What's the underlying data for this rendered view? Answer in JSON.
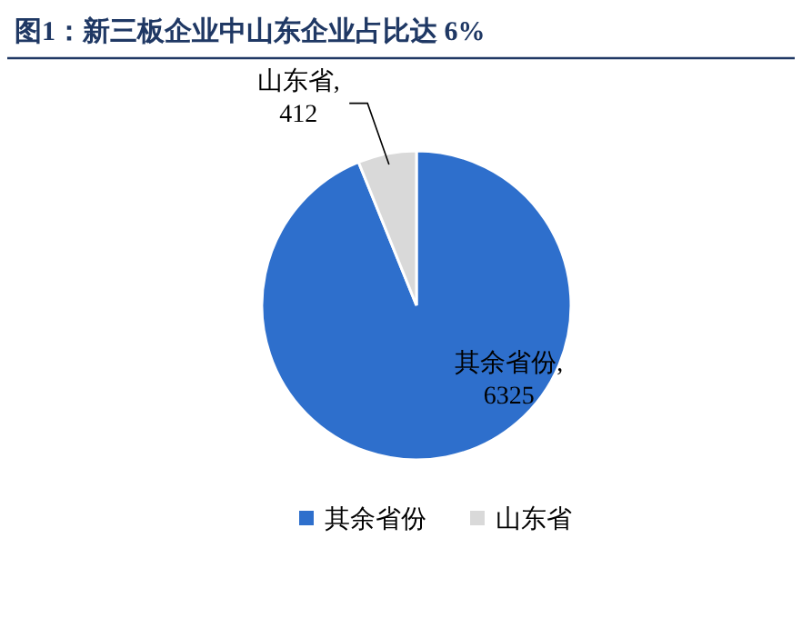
{
  "chart_data": {
    "type": "pie",
    "title": "图1：新三板企业中山东企业占比达 6%",
    "categories": [
      "其余省份",
      "山东省"
    ],
    "values": [
      6325,
      412
    ],
    "colors": [
      "#2e6fcc",
      "#d9d9d9"
    ],
    "value_labels": [
      "其余省份,6325",
      "山东省,412"
    ],
    "legend": "bottom"
  }
}
